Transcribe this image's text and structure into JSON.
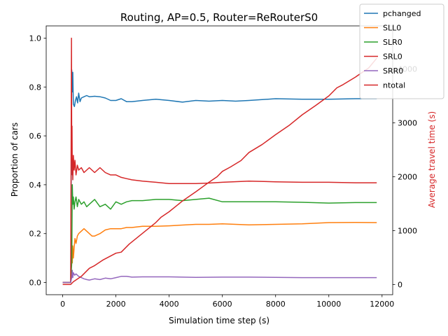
{
  "chart_data": {
    "type": "line",
    "title": "Routing, AP=0.5, Router=ReRouterS0",
    "xlabel": "Simulation time step (s)",
    "ylabel": "Proportion of cars",
    "ylabel_right": "Average travel time (s)",
    "right_axis_color": "#d62728",
    "xlim": [
      -620,
      12400
    ],
    "ylim": [
      -0.05,
      1.05
    ],
    "ylim_right": [
      -190,
      4800
    ],
    "xticks": [
      0,
      2000,
      4000,
      6000,
      8000,
      10000,
      12000
    ],
    "xtick_labels": [
      "0",
      "2000",
      "4000",
      "6000",
      "8000",
      "10000",
      "12000"
    ],
    "yticks": [
      0.0,
      0.2,
      0.4,
      0.6,
      0.8,
      1.0
    ],
    "ytick_labels": [
      "0.0",
      "0.2",
      "0.4",
      "0.6",
      "0.8",
      "1.0"
    ],
    "yticks_right": [
      0,
      1000,
      2000,
      3000,
      4000
    ],
    "ytick_labels_right": [
      "0",
      "1000",
      "2000",
      "3000",
      "4000"
    ],
    "grid": false,
    "legend_position": "top-right",
    "series": [
      {
        "name": "pchanged",
        "color": "#1f77b4",
        "axis": "left",
        "x": [
          0,
          300,
          340,
          360,
          380,
          400,
          440,
          480,
          520,
          560,
          600,
          650,
          700,
          800,
          900,
          1000,
          1200,
          1400,
          1600,
          1800,
          2000,
          2200,
          2400,
          2600,
          3000,
          3500,
          4000,
          4500,
          5000,
          5500,
          6000,
          6500,
          7000,
          8000,
          9000,
          10000,
          11000,
          11800
        ],
        "y": [
          0.0,
          0.0,
          0.87,
          0.78,
          0.86,
          0.73,
          0.72,
          0.745,
          0.76,
          0.735,
          0.775,
          0.74,
          0.755,
          0.76,
          0.765,
          0.76,
          0.762,
          0.76,
          0.755,
          0.745,
          0.745,
          0.752,
          0.74,
          0.74,
          0.745,
          0.75,
          0.745,
          0.738,
          0.745,
          0.742,
          0.745,
          0.742,
          0.745,
          0.752,
          0.75,
          0.75,
          0.752,
          0.752
        ]
      },
      {
        "name": "SLL0",
        "color": "#ff7f0e",
        "axis": "left",
        "x": [
          0,
          300,
          340,
          360,
          380,
          400,
          430,
          460,
          500,
          550,
          600,
          700,
          800,
          900,
          1000,
          1100,
          1200,
          1400,
          1600,
          1800,
          2000,
          2200,
          2400,
          2600,
          3000,
          3500,
          4000,
          4500,
          5000,
          5500,
          6000,
          7000,
          8000,
          9000,
          10000,
          11000,
          11800
        ],
        "y": [
          0.0,
          0.0,
          0.12,
          0.08,
          0.15,
          0.1,
          0.14,
          0.18,
          0.16,
          0.19,
          0.2,
          0.21,
          0.22,
          0.21,
          0.2,
          0.19,
          0.19,
          0.2,
          0.215,
          0.22,
          0.22,
          0.22,
          0.225,
          0.225,
          0.23,
          0.23,
          0.232,
          0.235,
          0.238,
          0.238,
          0.24,
          0.236,
          0.238,
          0.24,
          0.245,
          0.246,
          0.245
        ]
      },
      {
        "name": "SLR0",
        "color": "#2ca02c",
        "axis": "left",
        "x": [
          0,
          300,
          320,
          340,
          360,
          380,
          400,
          430,
          460,
          500,
          550,
          600,
          700,
          800,
          900,
          1000,
          1200,
          1400,
          1600,
          1800,
          2000,
          2200,
          2400,
          2600,
          3000,
          3500,
          4000,
          4500,
          5000,
          5500,
          6000,
          7000,
          8000,
          9000,
          10000,
          11000,
          11800
        ],
        "y": [
          0.0,
          0.0,
          0.04,
          0.08,
          0.4,
          0.32,
          0.35,
          0.3,
          0.33,
          0.35,
          0.31,
          0.34,
          0.32,
          0.33,
          0.31,
          0.32,
          0.34,
          0.31,
          0.32,
          0.3,
          0.33,
          0.32,
          0.33,
          0.335,
          0.335,
          0.34,
          0.34,
          0.335,
          0.34,
          0.345,
          0.33,
          0.33,
          0.33,
          0.328,
          0.325,
          0.327,
          0.327
        ]
      },
      {
        "name": "SRL0",
        "color": "#d62728",
        "axis": "left",
        "x": [
          0,
          300,
          330,
          340,
          350,
          360,
          370,
          380,
          400,
          430,
          460,
          500,
          550,
          600,
          700,
          800,
          900,
          1000,
          1200,
          1400,
          1600,
          1800,
          2000,
          2200,
          2400,
          2600,
          3000,
          3500,
          4000,
          4500,
          5000,
          5500,
          6000,
          7000,
          8000,
          9000,
          10000,
          11000,
          11800
        ],
        "y": [
          0.0,
          0.0,
          1.0,
          0.5,
          0.64,
          0.44,
          0.5,
          0.42,
          0.52,
          0.46,
          0.5,
          0.44,
          0.48,
          0.46,
          0.47,
          0.45,
          0.46,
          0.47,
          0.45,
          0.47,
          0.45,
          0.44,
          0.44,
          0.43,
          0.425,
          0.42,
          0.415,
          0.41,
          0.405,
          0.405,
          0.405,
          0.407,
          0.41,
          0.415,
          0.412,
          0.41,
          0.41,
          0.408,
          0.408
        ]
      },
      {
        "name": "SRR0",
        "color": "#9467bd",
        "axis": "left",
        "x": [
          0,
          300,
          340,
          360,
          380,
          400,
          450,
          500,
          600,
          700,
          800,
          900,
          1000,
          1200,
          1400,
          1600,
          1800,
          2000,
          2200,
          2400,
          2600,
          3000,
          4000,
          5000,
          6000,
          7000,
          8000,
          9000,
          10000,
          11000,
          11800
        ],
        "y": [
          0.0,
          0.0,
          0.02,
          0.05,
          0.02,
          0.04,
          0.03,
          0.035,
          0.025,
          0.02,
          0.015,
          0.012,
          0.01,
          0.015,
          0.012,
          0.018,
          0.015,
          0.02,
          0.025,
          0.025,
          0.022,
          0.023,
          0.023,
          0.021,
          0.022,
          0.022,
          0.021,
          0.02,
          0.02,
          0.02,
          0.02
        ]
      },
      {
        "name": "ntotal",
        "color": "#d62728",
        "axis": "right",
        "x": [
          0,
          300,
          400,
          700,
          1000,
          1200,
          1500,
          2000,
          2200,
          2500,
          3000,
          3500,
          3700,
          4000,
          4500,
          5000,
          5500,
          5800,
          6000,
          6300,
          6700,
          7000,
          7500,
          8000,
          8500,
          9000,
          9500,
          10000,
          10300,
          10500,
          11000,
          11500,
          11800
        ],
        "y": [
          0,
          0,
          50,
          150,
          300,
          350,
          450,
          580,
          600,
          750,
          950,
          1150,
          1250,
          1350,
          1550,
          1720,
          1900,
          2000,
          2100,
          2180,
          2300,
          2450,
          2600,
          2780,
          2950,
          3150,
          3320,
          3500,
          3650,
          3700,
          3850,
          4020,
          4200
        ]
      }
    ]
  }
}
